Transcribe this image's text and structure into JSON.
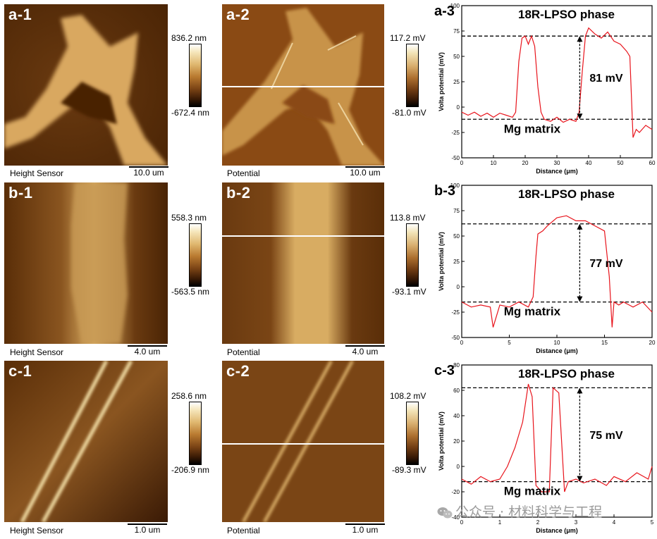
{
  "rows": [
    {
      "height_label": "a-1",
      "potential_label": "a-2",
      "chart_label": "a-3",
      "height_caption": "Height Sensor",
      "potential_caption": "Potential",
      "height_scale": "10.0 um",
      "potential_scale": "10.0 um",
      "height_max": "836.2 nm",
      "height_min": "-672.4 nm",
      "potential_max": "117.2 mV",
      "potential_min": "-81.0 mV"
    },
    {
      "height_label": "b-1",
      "potential_label": "b-2",
      "chart_label": "b-3",
      "height_caption": "Height Sensor",
      "potential_caption": "Potential",
      "height_scale": "4.0 um",
      "potential_scale": "4.0 um",
      "height_max": "558.3 nm",
      "height_min": "-563.5 nm",
      "potential_max": "113.8 mV",
      "potential_min": "-93.1 mV"
    },
    {
      "height_label": "c-1",
      "potential_label": "c-2",
      "chart_label": "c-3",
      "height_caption": "Height Sensor",
      "potential_caption": "Potential",
      "height_scale": "1.0 um",
      "potential_scale": "1.0 um",
      "height_max": "258.6 nm",
      "height_min": "-206.9 nm",
      "potential_max": "108.2 mV",
      "potential_min": "-89.3 mV"
    }
  ],
  "watermark": "公众号 · 材料科学与工程",
  "chart_data": [
    {
      "type": "line",
      "xlabel": "Distance (μm)",
      "ylabel": "Volta potential (mV)",
      "xlim": [
        0,
        60
      ],
      "ylim": [
        -50,
        100
      ],
      "xticks": [
        0,
        10,
        20,
        30,
        40,
        50,
        60
      ],
      "yticks": [
        -50,
        -25,
        0,
        25,
        50,
        75,
        100
      ],
      "color": "#e8141c",
      "upper_level": 70,
      "lower_level": -12,
      "diff_label": "81 mV",
      "top_annotation": "18R-LPSO phase",
      "bottom_annotation": "Mg matrix",
      "x": [
        0,
        2,
        4,
        6,
        8,
        10,
        12,
        14,
        16,
        17,
        18,
        19,
        20,
        21,
        22,
        23,
        24,
        25,
        26,
        28,
        30,
        32,
        34,
        36,
        37,
        38,
        39,
        40,
        42,
        44,
        46,
        48,
        50,
        52,
        53,
        54,
        55,
        56,
        58,
        60
      ],
      "y": [
        -5,
        -8,
        -5,
        -9,
        -6,
        -10,
        -6,
        -8,
        -10,
        -5,
        45,
        68,
        70,
        62,
        70,
        60,
        20,
        -5,
        -12,
        -14,
        -10,
        -15,
        -12,
        -14,
        -5,
        35,
        70,
        78,
        72,
        68,
        74,
        65,
        62,
        55,
        50,
        -30,
        -22,
        -25,
        -18,
        -22
      ]
    },
    {
      "type": "line",
      "xlabel": "Distance (μm)",
      "ylabel": "Volta potential (mV)",
      "xlim": [
        0,
        20
      ],
      "ylim": [
        -50,
        100
      ],
      "xticks": [
        0,
        5,
        10,
        15,
        20
      ],
      "yticks": [
        -50,
        -25,
        0,
        25,
        50,
        75,
        100
      ],
      "color": "#e8141c",
      "upper_level": 62,
      "lower_level": -15,
      "diff_label": "77 mV",
      "top_annotation": "18R-LPSO phase",
      "bottom_annotation": "Mg matrix",
      "x": [
        0,
        1,
        2,
        3,
        3.3,
        4,
        5,
        6,
        7,
        7.5,
        7.8,
        8,
        8.5,
        9,
        10,
        11,
        12,
        13,
        14,
        15,
        15.5,
        15.8,
        16,
        16.5,
        17,
        18,
        19,
        20
      ],
      "y": [
        -15,
        -20,
        -18,
        -20,
        -40,
        -18,
        -20,
        -15,
        -20,
        -10,
        30,
        52,
        55,
        60,
        68,
        70,
        65,
        65,
        60,
        55,
        10,
        -40,
        -15,
        -18,
        -15,
        -20,
        -15,
        -25
      ]
    },
    {
      "type": "line",
      "xlabel": "Distance (μm)",
      "ylabel": "Volta potential (mV)",
      "xlim": [
        0,
        5
      ],
      "ylim": [
        -40,
        80
      ],
      "xticks": [
        0,
        1,
        2,
        3,
        4,
        5
      ],
      "yticks": [
        -40,
        -20,
        0,
        20,
        40,
        60,
        80
      ],
      "color": "#e8141c",
      "upper_level": 62,
      "lower_level": -12,
      "diff_label": "75 mV",
      "top_annotation": "18R-LPSO phase",
      "bottom_annotation": "Mg matrix",
      "x": [
        0,
        0.25,
        0.5,
        0.75,
        1.0,
        1.2,
        1.4,
        1.6,
        1.75,
        1.85,
        1.95,
        2.1,
        2.3,
        2.4,
        2.55,
        2.7,
        2.8,
        3.0,
        3.2,
        3.5,
        3.8,
        4.0,
        4.3,
        4.6,
        4.9,
        5.0
      ],
      "y": [
        -10,
        -14,
        -8,
        -12,
        -10,
        0,
        15,
        35,
        65,
        55,
        -15,
        -20,
        -20,
        62,
        58,
        -20,
        -12,
        -10,
        -13,
        -10,
        -15,
        -8,
        -12,
        -5,
        -10,
        0
      ]
    }
  ]
}
